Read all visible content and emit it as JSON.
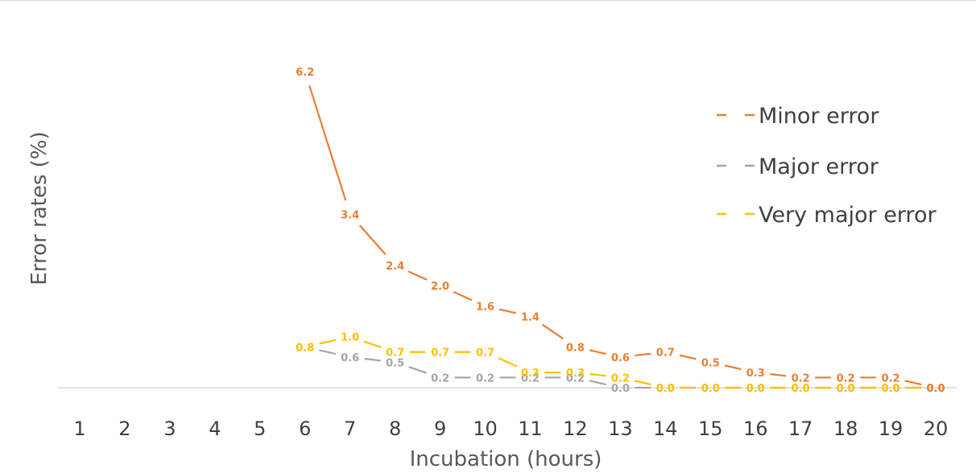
{
  "chart_data": {
    "type": "line",
    "xlabel": "Incubation (hours)",
    "ylabel": "Error rates (%)",
    "categories": [
      "1",
      "2",
      "3",
      "4",
      "5",
      "6",
      "7",
      "8",
      "9",
      "10",
      "11",
      "12",
      "13",
      "14",
      "15",
      "16",
      "17",
      "18",
      "19",
      "20"
    ],
    "ylim": [
      0,
      6.5
    ],
    "grid": false,
    "legend_position": "right",
    "series": [
      {
        "name": "Minor error",
        "color": "#ED7D31",
        "values": [
          null,
          null,
          null,
          null,
          null,
          6.2,
          3.4,
          2.4,
          2.0,
          1.6,
          1.4,
          0.8,
          0.6,
          0.7,
          0.5,
          0.3,
          0.2,
          0.2,
          0.2,
          0.0
        ],
        "labels": [
          null,
          null,
          null,
          null,
          null,
          "6.2",
          "3.4",
          "2.4",
          "2.0",
          "1.6",
          "1.4",
          "0.8",
          "0.6",
          "0.7",
          "0.5",
          "0.3",
          "0.2",
          "0.2",
          "0.2",
          "0.0"
        ]
      },
      {
        "name": "Major error",
        "color": "#A5A5A5",
        "values": [
          null,
          null,
          null,
          null,
          null,
          0.8,
          0.6,
          0.5,
          0.2,
          0.2,
          0.2,
          0.2,
          0.0,
          0.0,
          0.0,
          0.0,
          0.0,
          0.0,
          0.0,
          0.0
        ],
        "labels": [
          null,
          null,
          null,
          null,
          null,
          "0.8",
          "0.6",
          "0.5",
          "0.2",
          "0.2",
          "0.2",
          "0.2",
          "0.0",
          "0.0",
          "0.0",
          "0.0",
          "0.0",
          "0.0",
          "0.0",
          "0.0"
        ]
      },
      {
        "name": "Very major error",
        "color": "#FFC000",
        "values": [
          null,
          null,
          null,
          null,
          null,
          0.8,
          1.0,
          0.7,
          0.7,
          0.7,
          0.3,
          0.3,
          0.2,
          0.0,
          0.0,
          0.0,
          0.0,
          0.0,
          0.0,
          0.0
        ],
        "labels": [
          null,
          null,
          null,
          null,
          null,
          "0.8",
          "1.0",
          "0.7",
          "0.7",
          "0.7",
          "0.3",
          "0.3",
          "0.2",
          "0.0",
          "0.0",
          "0.0",
          "0.0",
          "0.0",
          "0.0",
          "0.0"
        ]
      }
    ]
  }
}
